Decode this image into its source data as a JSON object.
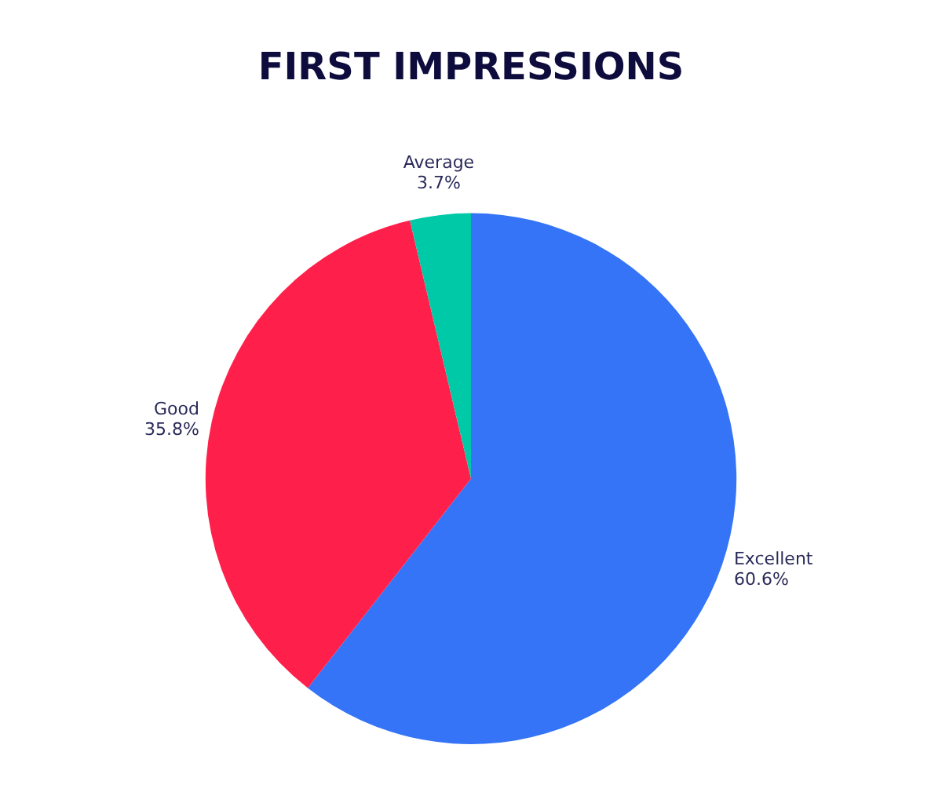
{
  "chart_data": {
    "type": "pie",
    "title": "FIRST IMPRESSIONS",
    "categories": [
      "Excellent",
      "Good",
      "Average"
    ],
    "values": [
      60.6,
      35.8,
      3.7
    ],
    "value_labels": [
      "60.6%",
      "35.8%",
      "3.7%"
    ],
    "colors": [
      "#3574f6",
      "#ff1f4b",
      "#00c9a7"
    ],
    "legend": false
  }
}
